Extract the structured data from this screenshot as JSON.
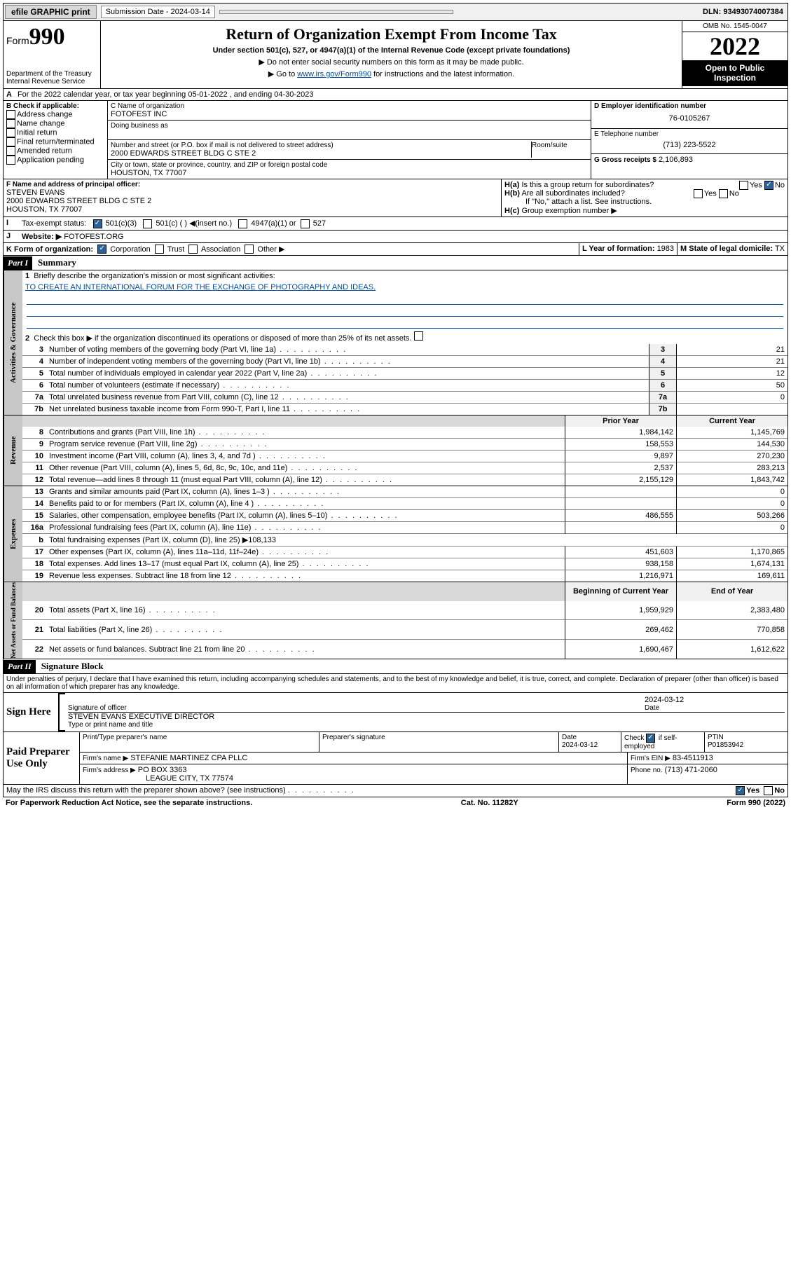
{
  "topbar": {
    "efile": "efile GRAPHIC print",
    "submission_label": "Submission Date - 2024-03-14",
    "dln": "DLN: 93493074007384"
  },
  "header": {
    "form_small": "Form",
    "form_no": "990",
    "dept": "Department of the Treasury",
    "irs": "Internal Revenue Service",
    "title": "Return of Organization Exempt From Income Tax",
    "sub1": "Under section 501(c), 527, or 4947(a)(1) of the Internal Revenue Code (except private foundations)",
    "sub2a": "▶ Do not enter social security numbers on this form as it may be made public.",
    "sub2b_pre": "▶ Go to ",
    "sub2b_link": "www.irs.gov/Form990",
    "sub2b_post": " for instructions and the latest information.",
    "omb": "OMB No. 1545-0047",
    "year": "2022",
    "inspect": "Open to Public Inspection"
  },
  "periodA": "For the 2022 calendar year, or tax year beginning 05-01-2022   , and ending 04-30-2023",
  "boxB": {
    "label": "B Check if applicable:",
    "items": [
      "Address change",
      "Name change",
      "Initial return",
      "Final return/terminated",
      "Amended return",
      "Application pending"
    ]
  },
  "boxC": {
    "name_lbl": "C Name of organization",
    "name": "FOTOFEST INC",
    "dba_lbl": "Doing business as",
    "addr_lbl": "Number and street (or P.O. box if mail is not delivered to street address)",
    "room_lbl": "Room/suite",
    "addr": "2000 EDWARDS STREET BLDG C STE 2",
    "city_lbl": "City or town, state or province, country, and ZIP or foreign postal code",
    "city": "HOUSTON, TX  77007"
  },
  "boxD": {
    "lbl": "D Employer identification number",
    "val": "76-0105267"
  },
  "boxE": {
    "lbl": "E Telephone number",
    "val": "(713) 223-5522"
  },
  "boxG": {
    "lbl": "G Gross receipts $",
    "val": "2,106,893"
  },
  "boxF": {
    "lbl": "F Name and address of principal officer:",
    "name": "STEVEN EVANS",
    "addr1": "2000 EDWARDS STREET BLDG C STE 2",
    "addr2": "HOUSTON, TX  77007"
  },
  "boxH": {
    "a": "Is this a group return for subordinates?",
    "b": "Are all subordinates included?",
    "note": "If \"No,\" attach a list. See instructions.",
    "c": "Group exemption number ▶",
    "yes": "Yes",
    "no": "No"
  },
  "boxI": {
    "lbl": "Tax-exempt status:",
    "opts": [
      "501(c)(3)",
      "501(c) (  ) ◀(insert no.)",
      "4947(a)(1) or",
      "527"
    ]
  },
  "boxJ": {
    "lbl": "Website: ▶",
    "val": "FOTOFEST.ORG"
  },
  "boxK": {
    "lbl": "K Form of organization:",
    "opts": [
      "Corporation",
      "Trust",
      "Association",
      "Other ▶"
    ]
  },
  "boxL": {
    "lbl": "L Year of formation:",
    "val": "1983"
  },
  "boxM": {
    "lbl": "M State of legal domicile:",
    "val": "TX"
  },
  "part1": {
    "hdr": "Part I",
    "title": "Summary",
    "l1": "Briefly describe the organization's mission or most significant activities:",
    "mission": "TO CREATE AN INTERNATIONAL FORUM FOR THE EXCHANGE OF PHOTOGRAPHY AND IDEAS.",
    "l2": "Check this box ▶       if the organization discontinued its operations or disposed of more than 25% of its net assets.",
    "tabs": {
      "gov": "Activities & Governance",
      "rev": "Revenue",
      "exp": "Expenses",
      "net": "Net Assets or Fund Balances"
    },
    "gov_lines": [
      {
        "n": "3",
        "t": "Number of voting members of the governing body (Part VI, line 1a)",
        "v": "21"
      },
      {
        "n": "4",
        "t": "Number of independent voting members of the governing body (Part VI, line 1b)",
        "v": "21"
      },
      {
        "n": "5",
        "t": "Total number of individuals employed in calendar year 2022 (Part V, line 2a)",
        "v": "12"
      },
      {
        "n": "6",
        "t": "Total number of volunteers (estimate if necessary)",
        "v": "50"
      },
      {
        "n": "7a",
        "t": "Total unrelated business revenue from Part VIII, column (C), line 12",
        "v": "0"
      },
      {
        "n": "7b",
        "t": "Net unrelated business taxable income from Form 990-T, Part I, line 11",
        "v": ""
      }
    ],
    "col_prior": "Prior Year",
    "col_curr": "Current Year",
    "rev_lines": [
      {
        "n": "8",
        "t": "Contributions and grants (Part VIII, line 1h)",
        "p": "1,984,142",
        "c": "1,145,769"
      },
      {
        "n": "9",
        "t": "Program service revenue (Part VIII, line 2g)",
        "p": "158,553",
        "c": "144,530"
      },
      {
        "n": "10",
        "t": "Investment income (Part VIII, column (A), lines 3, 4, and 7d )",
        "p": "9,897",
        "c": "270,230"
      },
      {
        "n": "11",
        "t": "Other revenue (Part VIII, column (A), lines 5, 6d, 8c, 9c, 10c, and 11e)",
        "p": "2,537",
        "c": "283,213"
      },
      {
        "n": "12",
        "t": "Total revenue—add lines 8 through 11 (must equal Part VIII, column (A), line 12)",
        "p": "2,155,129",
        "c": "1,843,742"
      }
    ],
    "exp_lines": [
      {
        "n": "13",
        "t": "Grants and similar amounts paid (Part IX, column (A), lines 1–3 )",
        "p": "",
        "c": "0"
      },
      {
        "n": "14",
        "t": "Benefits paid to or for members (Part IX, column (A), line 4 )",
        "p": "",
        "c": "0"
      },
      {
        "n": "15",
        "t": "Salaries, other compensation, employee benefits (Part IX, column (A), lines 5–10)",
        "p": "486,555",
        "c": "503,266"
      },
      {
        "n": "16a",
        "t": "Professional fundraising fees (Part IX, column (A), line 11e)",
        "p": "",
        "c": "0"
      },
      {
        "n": "b",
        "t": "Total fundraising expenses (Part IX, column (D), line 25) ▶108,133",
        "p": null,
        "c": null
      },
      {
        "n": "17",
        "t": "Other expenses (Part IX, column (A), lines 11a–11d, 11f–24e)",
        "p": "451,603",
        "c": "1,170,865"
      },
      {
        "n": "18",
        "t": "Total expenses. Add lines 13–17 (must equal Part IX, column (A), line 25)",
        "p": "938,158",
        "c": "1,674,131"
      },
      {
        "n": "19",
        "t": "Revenue less expenses. Subtract line 18 from line 12",
        "p": "1,216,971",
        "c": "169,611"
      }
    ],
    "net_h1": "Beginning of Current Year",
    "net_h2": "End of Year",
    "net_lines": [
      {
        "n": "20",
        "t": "Total assets (Part X, line 16)",
        "p": "1,959,929",
        "c": "2,383,480"
      },
      {
        "n": "21",
        "t": "Total liabilities (Part X, line 26)",
        "p": "269,462",
        "c": "770,858"
      },
      {
        "n": "22",
        "t": "Net assets or fund balances. Subtract line 21 from line 20",
        "p": "1,690,467",
        "c": "1,612,622"
      }
    ]
  },
  "part2": {
    "hdr": "Part II",
    "title": "Signature Block",
    "decl": "Under penalties of perjury, I declare that I have examined this return, including accompanying schedules and statements, and to the best of my knowledge and belief, it is true, correct, and complete. Declaration of preparer (other than officer) is based on all information of which preparer has any knowledge.",
    "sign_here": "Sign Here",
    "sig_officer": "Signature of officer",
    "sig_date": "2024-03-12",
    "date_lbl": "Date",
    "officer_name": "STEVEN EVANS  EXECUTIVE DIRECTOR",
    "officer_lbl": "Type or print name and title",
    "paid": "Paid Preparer Use Only",
    "pt_name_lbl": "Print/Type preparer's name",
    "pt_sig_lbl": "Preparer's signature",
    "pt_date_lbl": "Date",
    "pt_date": "2024-03-12",
    "pt_check": "Check        if self-employed",
    "ptin_lbl": "PTIN",
    "ptin": "P01853942",
    "firm_name_lbl": "Firm's name    ▶",
    "firm_name": "STEFANIE MARTINEZ CPA PLLC",
    "firm_ein_lbl": "Firm's EIN ▶",
    "firm_ein": "83-4511913",
    "firm_addr_lbl": "Firm's address ▶",
    "firm_addr1": "PO BOX 3363",
    "firm_addr2": "LEAGUE CITY, TX  77574",
    "phone_lbl": "Phone no.",
    "phone": "(713) 471-2060",
    "discuss": "May the IRS discuss this return with the preparer shown above? (see instructions)"
  },
  "footer": {
    "left": "For Paperwork Reduction Act Notice, see the separate instructions.",
    "mid": "Cat. No. 11282Y",
    "right": "Form 990 (2022)"
  }
}
